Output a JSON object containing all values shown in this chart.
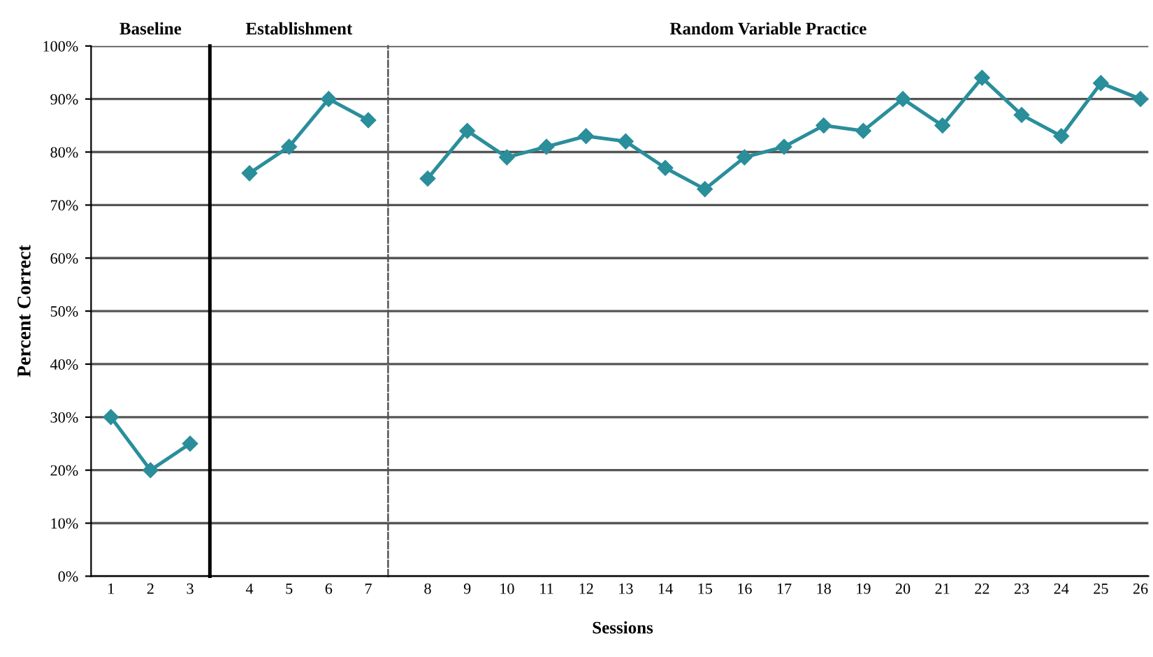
{
  "chart_data": [
    {
      "type": "line",
      "title": "Baseline",
      "ylabel": "Percent Correct",
      "categories": [
        "1",
        "2",
        "3"
      ],
      "series": [
        {
          "color": "#2a8e9b",
          "values": [
            30,
            20,
            25
          ]
        }
      ],
      "ylim": [
        0,
        100
      ],
      "yticks": [
        {
          "value": 0,
          "label": "0%"
        },
        {
          "value": 10,
          "label": "10%"
        },
        {
          "value": 20,
          "label": "20%"
        },
        {
          "value": 30,
          "label": "30%"
        },
        {
          "value": 40,
          "label": "40%"
        },
        {
          "value": 50,
          "label": "50%"
        },
        {
          "value": 60,
          "label": "60%"
        },
        {
          "value": 70,
          "label": "70%"
        },
        {
          "value": 80,
          "label": "80%"
        },
        {
          "value": 90,
          "label": "90%"
        },
        {
          "value": 100,
          "label": "100%"
        }
      ],
      "grid": "y",
      "marker": "diamond",
      "line_style": "solid"
    },
    {
      "type": "line",
      "title": "Establishment",
      "categories": [
        "4",
        "5",
        "6",
        "7"
      ],
      "series": [
        {
          "color": "#2a8e9b",
          "values": [
            76,
            81,
            90,
            86
          ]
        }
      ],
      "ylim": [
        0,
        100
      ],
      "yticks": [
        0,
        10,
        20,
        30,
        40,
        50,
        60,
        70,
        80,
        90,
        100
      ],
      "tick_labels": "x",
      "grid": "y",
      "marker": "diamond",
      "line_style": "solid"
    },
    {
      "type": "line",
      "title": "Random Variable Practice",
      "xlabel": "Sessions",
      "categories": [
        "8",
        "9",
        "10",
        "11",
        "12",
        "13",
        "14",
        "15",
        "16",
        "17",
        "18",
        "19",
        "20",
        "21",
        "22",
        "23",
        "24",
        "25",
        "26"
      ],
      "series": [
        {
          "color": "#2a8e9b",
          "values": [
            75,
            84,
            79,
            81,
            83,
            82,
            77,
            73,
            79,
            81,
            85,
            84,
            90,
            85,
            94,
            87,
            83,
            93,
            90
          ]
        }
      ],
      "ylim": [
        0,
        100
      ],
      "yticks": [
        0,
        10,
        20,
        30,
        40,
        50,
        60,
        70,
        80,
        90,
        100
      ],
      "tick_labels": "x",
      "grid": "y",
      "marker": "diamond",
      "line_style": "solid"
    }
  ]
}
